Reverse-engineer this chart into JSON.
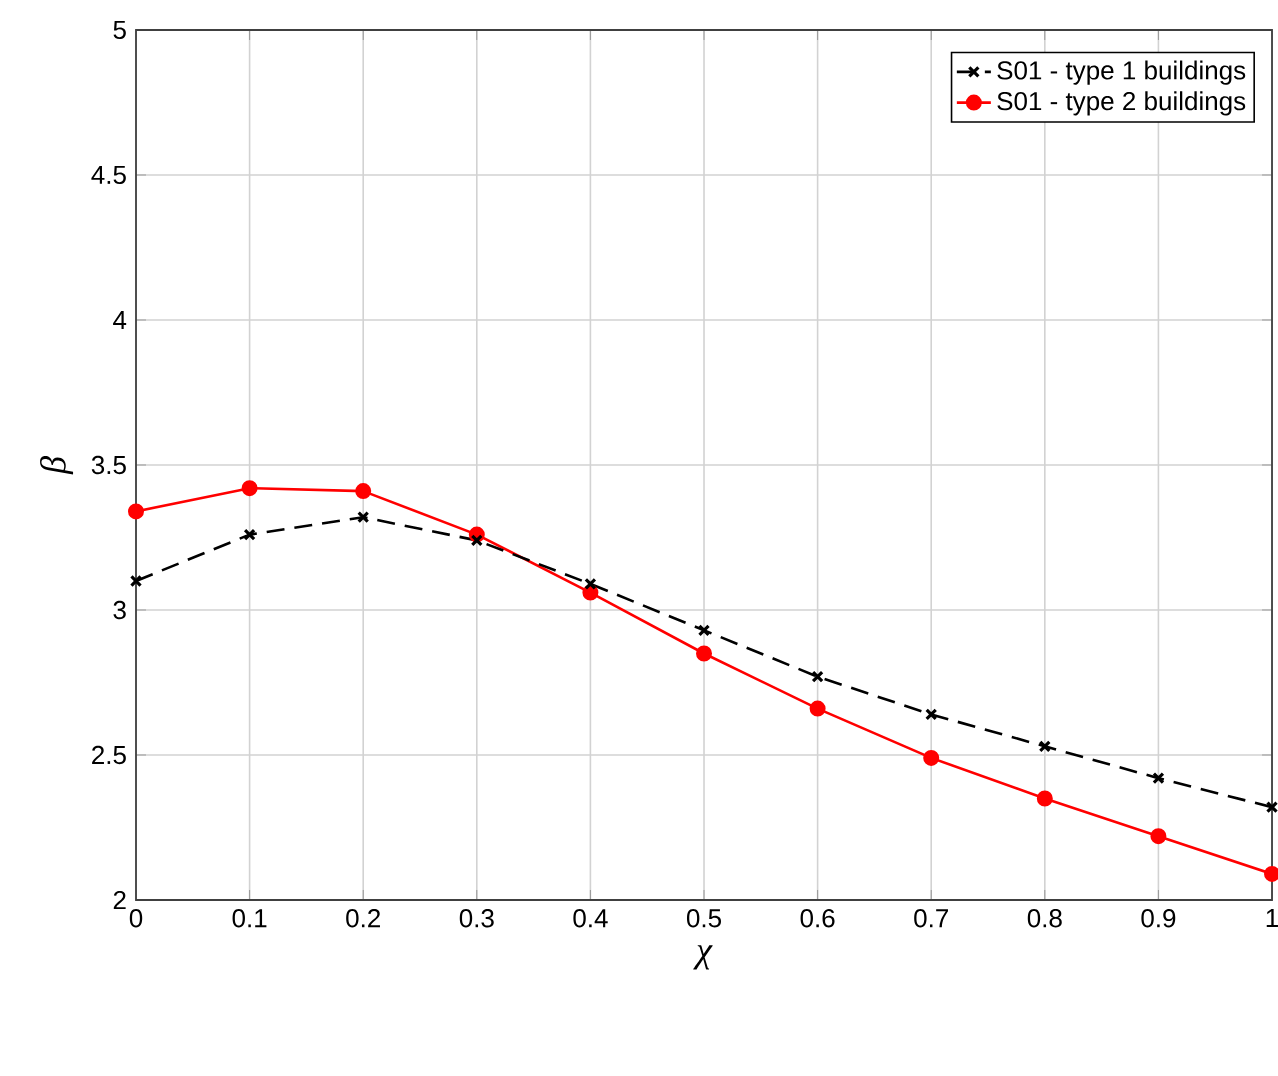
{
  "chart_data": {
    "type": "line",
    "xlabel": "χ",
    "ylabel": "β",
    "x": [
      0,
      0.1,
      0.2,
      0.3,
      0.4,
      0.5,
      0.6,
      0.7,
      0.8,
      0.9,
      1
    ],
    "series": [
      {
        "name": "S01 - type 1 buildings",
        "color": "#000000",
        "marker": "cross",
        "line_style": "dashed",
        "values": [
          3.1,
          3.26,
          3.32,
          3.24,
          3.09,
          2.93,
          2.77,
          2.64,
          2.53,
          2.42,
          2.32
        ]
      },
      {
        "name": "S01 - type 2 buildings",
        "color": "#ff0000",
        "marker": "circle",
        "line_style": "solid",
        "values": [
          3.34,
          3.42,
          3.41,
          3.26,
          3.06,
          2.85,
          2.66,
          2.49,
          2.35,
          2.22,
          2.09
        ]
      }
    ],
    "xlim": [
      0,
      1
    ],
    "xticks": [
      0,
      0.1,
      0.2,
      0.3,
      0.4,
      0.5,
      0.6,
      0.7,
      0.8,
      0.9,
      1
    ],
    "ylim": [
      2,
      5
    ],
    "yticks": [
      2,
      2.5,
      3,
      3.5,
      4,
      4.5,
      5
    ],
    "grid": true,
    "legend": "top right"
  }
}
